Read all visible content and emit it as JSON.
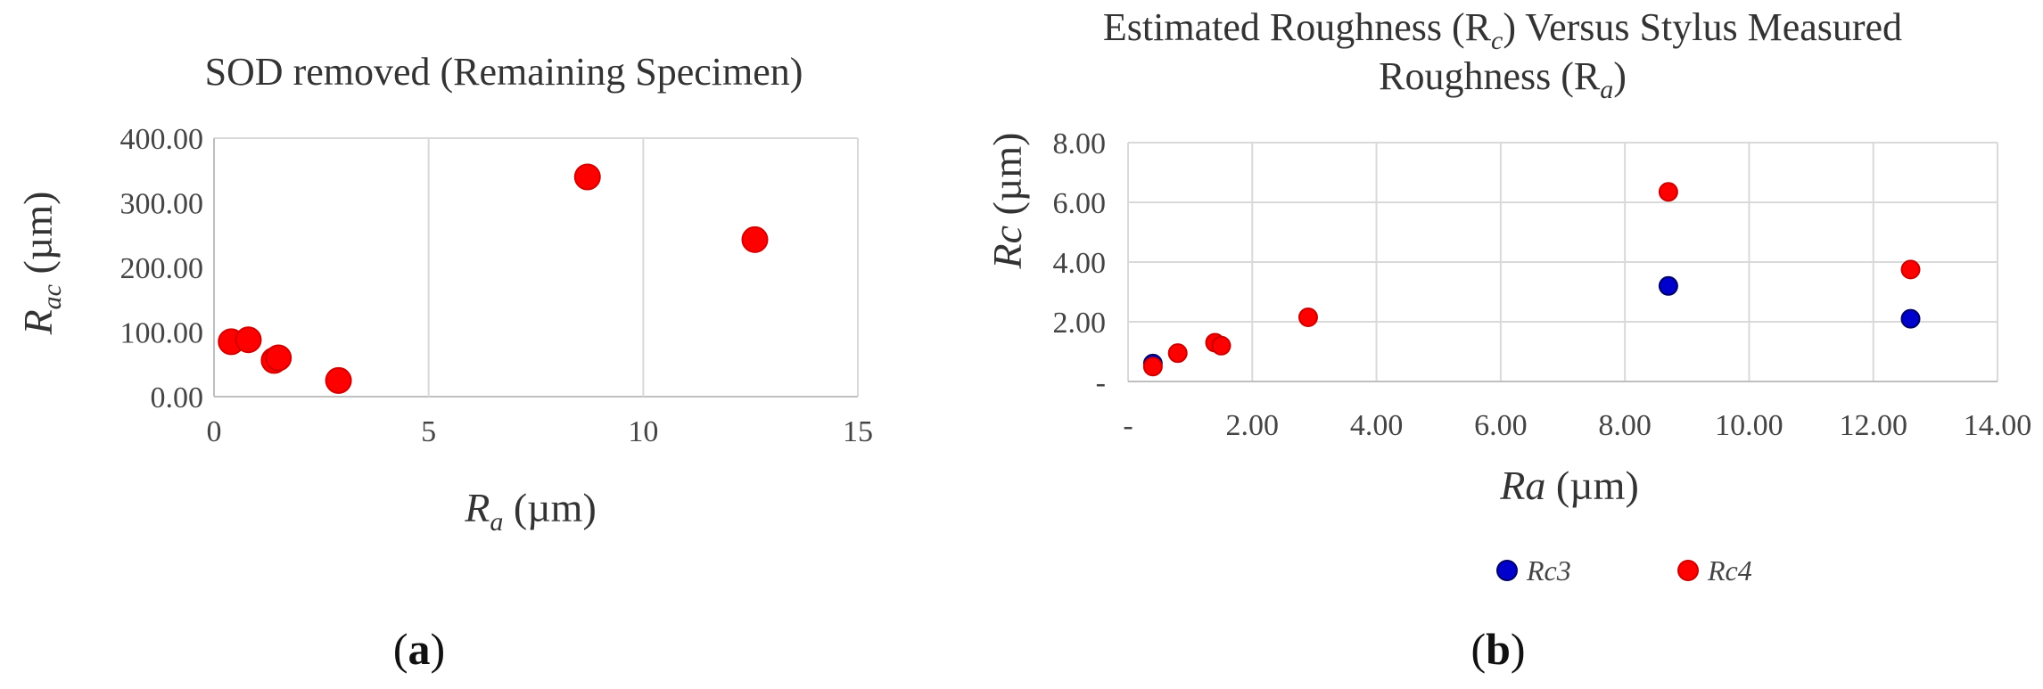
{
  "chart_data": [
    {
      "type": "scatter",
      "title": "SOD removed (Remaining Specimen)",
      "xlabel": {
        "main": "R",
        "sub": "a",
        "unit": " (µm)"
      },
      "ylabel": {
        "main": "R",
        "sub": "ac",
        "unit": " (µm)"
      },
      "xlim": [
        0,
        15
      ],
      "ylim": [
        0,
        400
      ],
      "x_ticks": [
        "0",
        "5",
        "10",
        "15"
      ],
      "y_ticks": [
        "0.00",
        "100.00",
        "200.00",
        "300.00",
        "400.00"
      ],
      "grid": "vertical",
      "marker_color": "#ff0000",
      "series": [
        {
          "x": [
            0.4,
            0.8,
            1.4,
            1.5,
            2.9,
            8.7,
            12.6
          ],
          "y": [
            85,
            88,
            56,
            60,
            25,
            340,
            243
          ]
        }
      ],
      "panel_label": "a"
    },
    {
      "type": "scatter",
      "title_line1": "Estimated Roughness (R",
      "title_line1_sub": "c",
      "title_line1_end": ") Versus Stylus Measured",
      "title_line2": "Roughness (R",
      "title_line2_sub": "a",
      "title_line2_end": ")",
      "xlabel": {
        "main": "Ra",
        "unit": " (µm)"
      },
      "ylabel": {
        "main": "Rc",
        "unit": " (µm)"
      },
      "xlim": [
        0,
        14
      ],
      "ylim": [
        0,
        8
      ],
      "x_ticks": [
        "-",
        "2.00",
        "4.00",
        "6.00",
        "8.00",
        "10.00",
        "12.00",
        "14.00"
      ],
      "y_ticks": [
        "-",
        "2.00",
        "4.00",
        "6.00",
        "8.00"
      ],
      "grid": "both",
      "legend_position": "bottom",
      "series": [
        {
          "name": "Rc3",
          "color": "#0000cc",
          "x": [
            0.4,
            8.7,
            12.6
          ],
          "y": [
            0.6,
            3.2,
            2.1
          ]
        },
        {
          "name": "Rc4",
          "color": "#ff0000",
          "x": [
            0.4,
            0.8,
            1.4,
            1.5,
            2.9,
            8.7,
            12.6
          ],
          "y": [
            0.5,
            0.95,
            1.3,
            1.2,
            2.15,
            6.35,
            3.75
          ]
        }
      ],
      "panel_label": "b"
    }
  ]
}
